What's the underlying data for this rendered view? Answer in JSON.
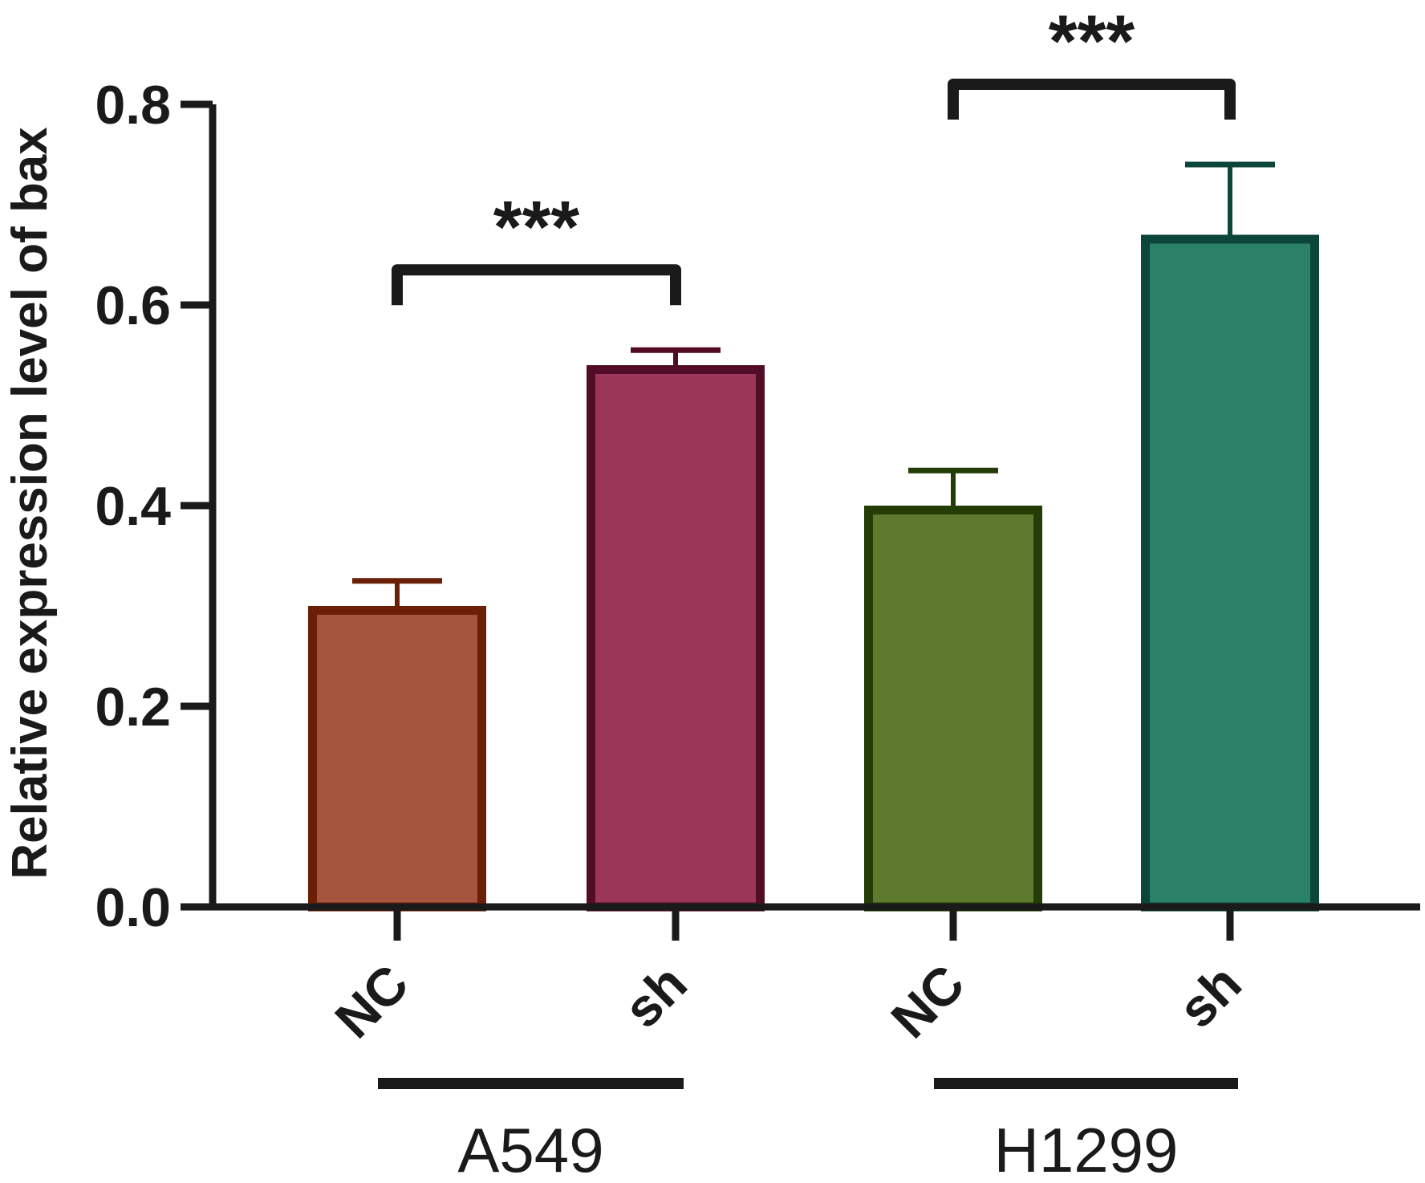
{
  "chart_data": {
    "type": "bar",
    "ylabel": "Relative expression level of bax",
    "ylim": [
      0,
      0.8
    ],
    "yticks": [
      "0.0",
      "0.2",
      "0.4",
      "0.6",
      "0.8"
    ],
    "yticks_values": [
      0,
      0.2,
      0.4,
      0.6,
      0.8
    ],
    "grid": false,
    "categories": [
      "NC",
      "sh",
      "NC",
      "sh"
    ],
    "values": [
      0.3,
      0.54,
      0.4,
      0.67
    ],
    "errors": [
      0.025,
      0.015,
      0.035,
      0.07
    ],
    "groups": [
      {
        "name": "A549",
        "members": [
          0,
          1
        ]
      },
      {
        "name": "H1299",
        "members": [
          2,
          3
        ]
      }
    ],
    "bar_fill_colors": [
      "#A5553D",
      "#9C3659",
      "#5E7A2E",
      "#2B8068"
    ],
    "bar_edge_colors": [
      "#6B1F06",
      "#520C26",
      "#243D06",
      "#0C463A"
    ],
    "significance": [
      {
        "from": 0,
        "to": 1,
        "label": "***"
      },
      {
        "from": 2,
        "to": 3,
        "label": "***"
      }
    ]
  }
}
